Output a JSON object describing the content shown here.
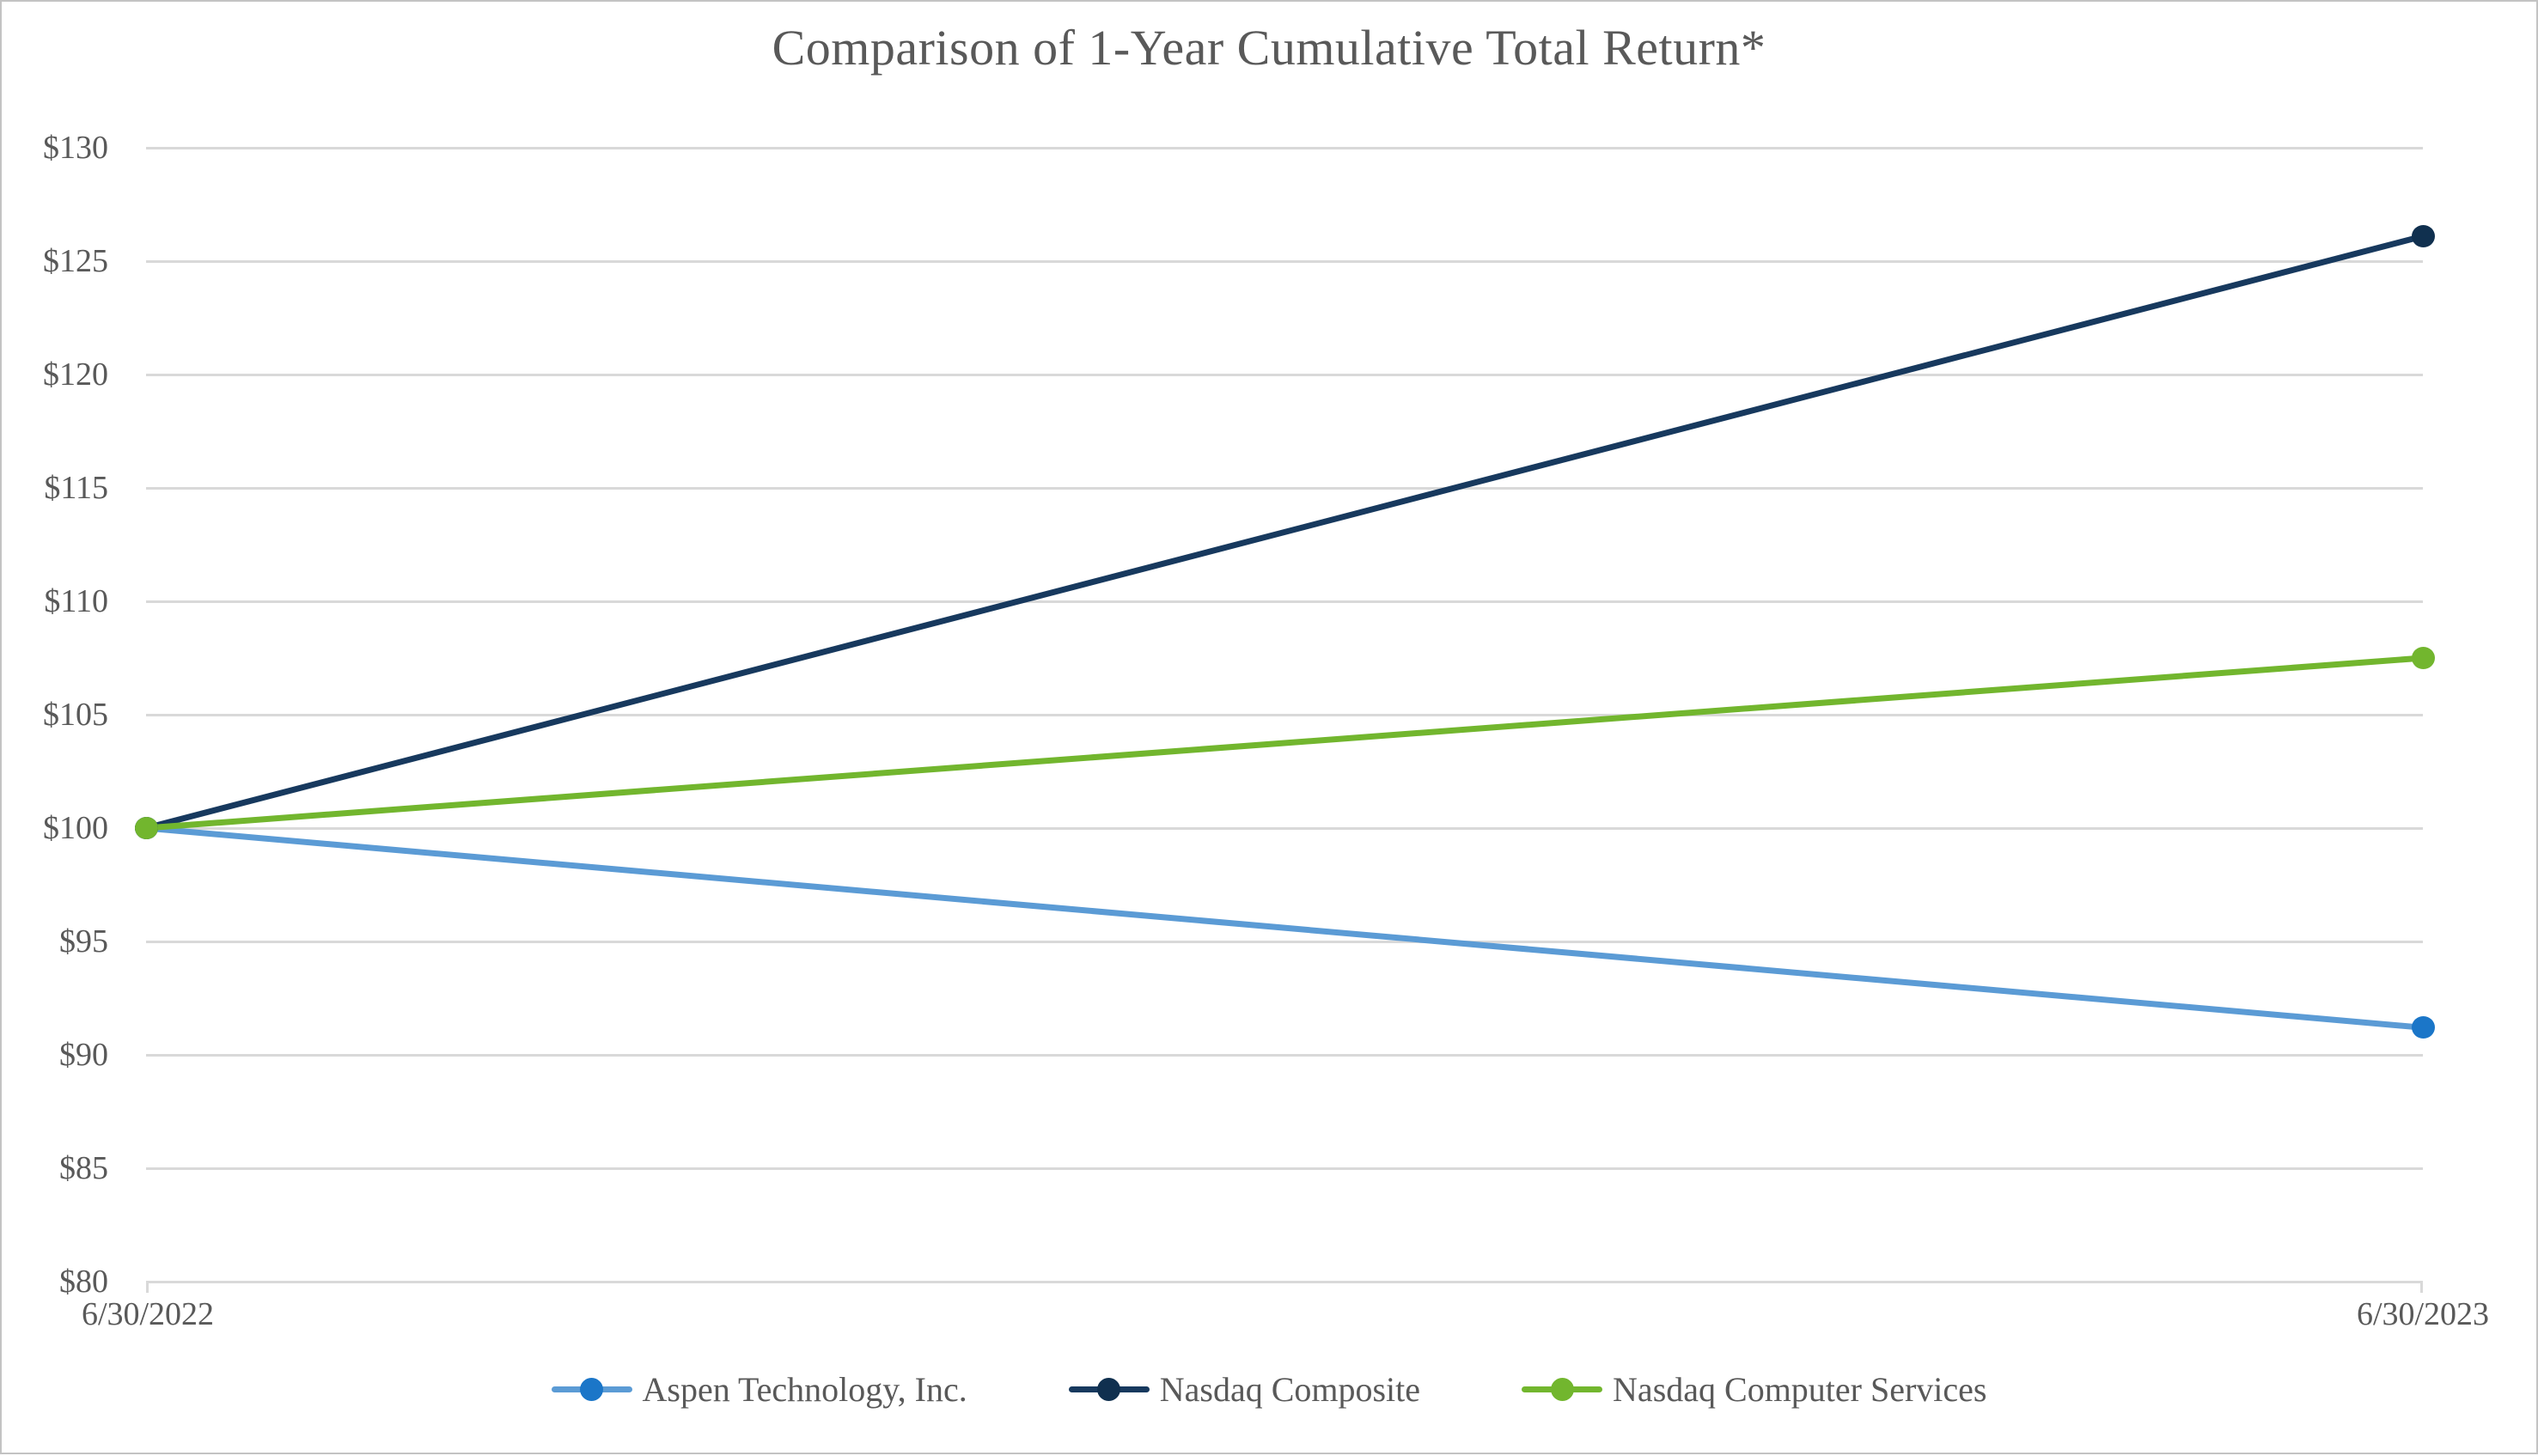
{
  "chart_data": {
    "type": "line",
    "title": "Comparison of 1-Year Cumulative Total Return*",
    "x_labels": [
      "6/30/2022",
      "6/30/2023"
    ],
    "series": [
      {
        "name": "Aspen Technology, Inc.",
        "values": [
          100,
          91.2
        ],
        "line_color": "#5b9bd5",
        "marker_color": "#1b76c8"
      },
      {
        "name": "Nasdaq Composite",
        "values": [
          100,
          126.1
        ],
        "line_color": "#17395e",
        "marker_color": "#10304f"
      },
      {
        "name": "Nasdaq Computer Services",
        "values": [
          100,
          107.5
        ],
        "line_color": "#72b62e",
        "marker_color": "#72b62e"
      }
    ],
    "ylim": [
      80,
      130
    ],
    "y_tick_step": 5,
    "y_tick_labels": [
      "$80",
      "$85",
      "$90",
      "$95",
      "$100",
      "$105",
      "$110",
      "$115",
      "$120",
      "$125",
      "$130"
    ],
    "grid": true,
    "legend_position": "bottom",
    "gridline_color": "#d9d9d9",
    "text_color": "#595959",
    "currency_prefix": "$"
  }
}
